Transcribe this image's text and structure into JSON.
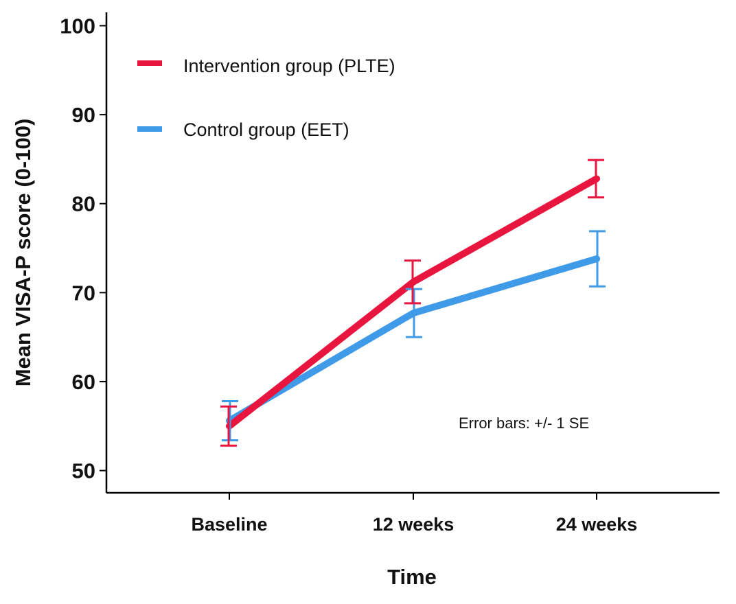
{
  "chart_data": {
    "type": "line",
    "title": "",
    "xlabel": "Time",
    "ylabel": "Mean VISA-P score (0-100)",
    "categories": [
      "Baseline",
      "12 weeks",
      "24 weeks"
    ],
    "ylim": [
      47.5,
      101.5
    ],
    "yticks": [
      "50",
      "60",
      "70",
      "80",
      "90",
      "100"
    ],
    "grid": false,
    "legend_position": "top-left",
    "series": [
      {
        "name": "Intervention group (PLTE)",
        "color": "#e8153f",
        "values": [
          55.0,
          71.2,
          82.8
        ],
        "se": [
          2.2,
          2.4,
          2.1
        ]
      },
      {
        "name": "Control group (EET)",
        "color": "#3f9ae8",
        "values": [
          55.6,
          67.7,
          73.8
        ],
        "se": [
          2.2,
          2.7,
          3.1
        ]
      }
    ],
    "annotation": "Error bars: +/- 1 SE"
  }
}
